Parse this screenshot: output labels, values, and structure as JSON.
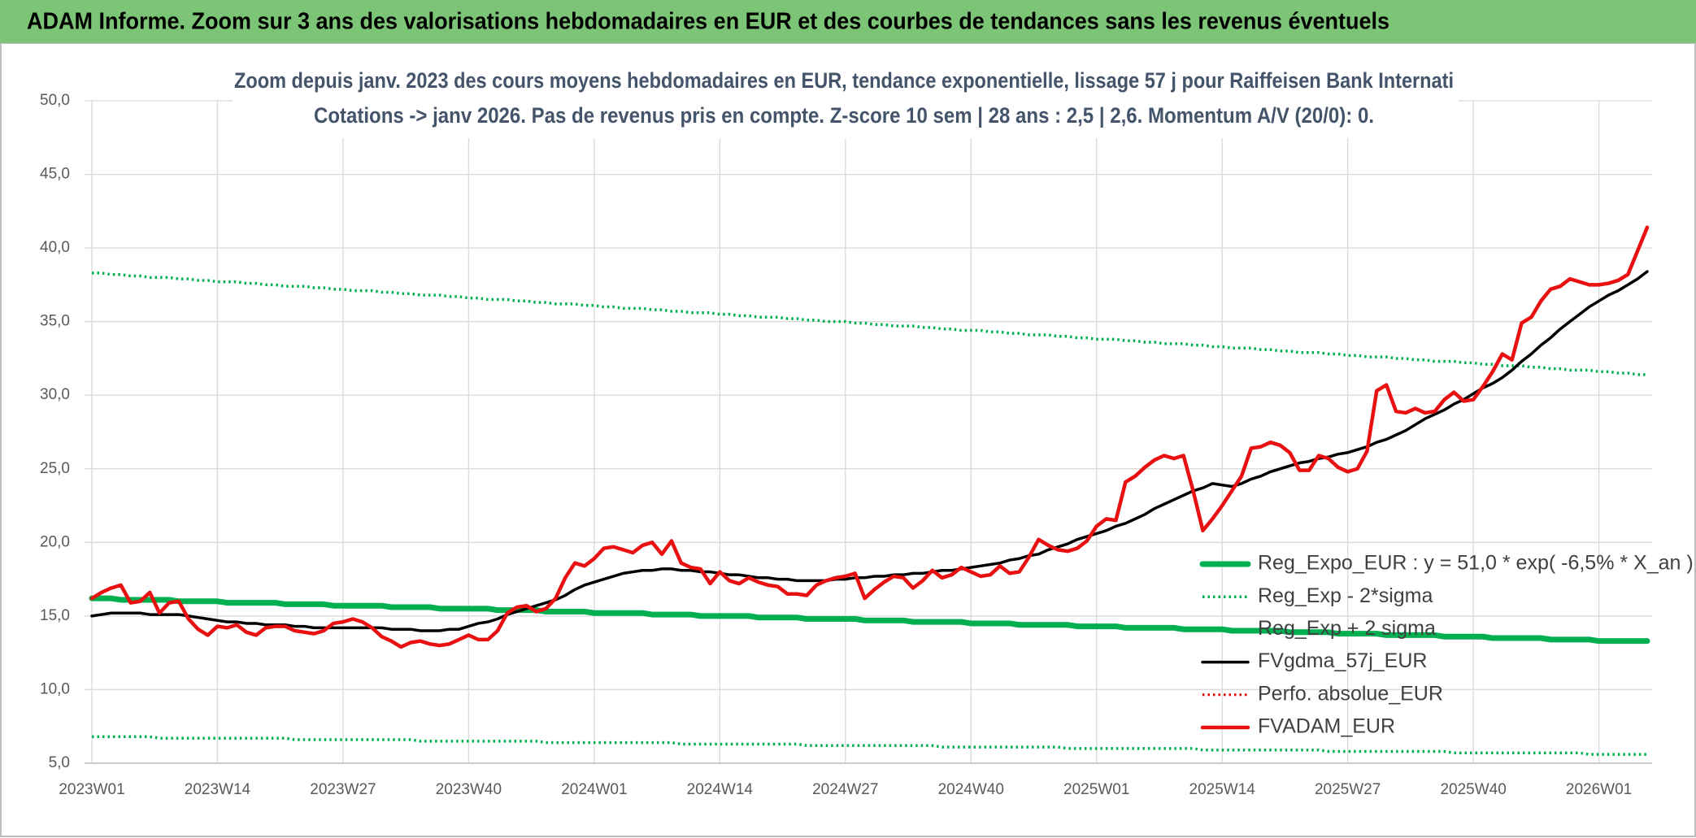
{
  "chart_data": {
    "type": "line",
    "title": "ADAM Informe. Zoom sur 3 ans des valorisations hebdomadaires en EUR et des courbes de tendances sans les revenus éventuels",
    "subtitle": [
      "Zoom depuis janv. 2023 des cours moyens hebdomadaires en EUR, tendance exponentielle, lissage 57 j pour Raiffeisen Bank Internati",
      "Cotations -> janv 2026. Pas de revenus pris en compte. Z-score 10 sem | 28 ans : 2,5 | 2,6. Momentum A/V (20/0): 0."
    ],
    "categories": [
      "2023W01",
      null,
      null,
      null,
      null,
      null,
      null,
      null,
      null,
      null,
      null,
      null,
      null,
      "2023W14",
      null,
      null,
      null,
      null,
      null,
      null,
      null,
      null,
      null,
      null,
      null,
      null,
      "2023W27",
      null,
      null,
      null,
      null,
      null,
      null,
      null,
      null,
      null,
      null,
      null,
      null,
      "2023W40",
      null,
      null,
      null,
      null,
      null,
      null,
      null,
      null,
      null,
      null,
      null,
      null,
      "2024W01",
      null,
      null,
      null,
      null,
      null,
      null,
      null,
      null,
      null,
      null,
      null,
      null,
      "2024W14",
      null,
      null,
      null,
      null,
      null,
      null,
      null,
      null,
      null,
      null,
      null,
      null,
      "2024W27",
      null,
      null,
      null,
      null,
      null,
      null,
      null,
      null,
      null,
      null,
      null,
      null,
      "2024W40",
      null,
      null,
      null,
      null,
      null,
      null,
      null,
      null,
      null,
      null,
      null,
      null,
      "2025W01",
      null,
      null,
      null,
      null,
      null,
      null,
      null,
      null,
      null,
      null,
      null,
      null,
      "2025W14",
      null,
      null,
      null,
      null,
      null,
      null,
      null,
      null,
      null,
      null,
      null,
      null,
      "2025W27",
      null,
      null,
      null,
      null,
      null,
      null,
      null,
      null,
      null,
      null,
      null,
      null,
      "2025W40",
      null,
      null,
      null,
      null,
      null,
      null,
      null,
      null,
      null,
      null,
      null,
      null,
      "2026W01",
      null,
      null,
      null,
      null,
      null
    ],
    "ylim": [
      5,
      50
    ],
    "yticks": [
      {
        "value": 5,
        "label": "5,0"
      },
      {
        "value": 10,
        "label": "10,0"
      },
      {
        "value": 15,
        "label": "15,0"
      },
      {
        "value": 20,
        "label": "20,0"
      },
      {
        "value": 25,
        "label": "25,0"
      },
      {
        "value": 30,
        "label": "30,0"
      },
      {
        "value": 35,
        "label": "35,0"
      },
      {
        "value": 40,
        "label": "40,0"
      },
      {
        "value": 45,
        "label": "45,0"
      },
      {
        "value": 50,
        "label": "50,0"
      }
    ],
    "grid": true,
    "legend": "right",
    "series": [
      {
        "name": "Reg_Expo_EUR : y = 51,0 * exp( -6,5% *  X_an )",
        "color": "#00b050",
        "line_style": "solid",
        "values": [
          16.2,
          16.2,
          16.2,
          16.1,
          16.1,
          16.1,
          16.1,
          16.1,
          16.1,
          16.0,
          16.0,
          16.0,
          16.0,
          16.0,
          15.9,
          15.9,
          15.9,
          15.9,
          15.9,
          15.9,
          15.8,
          15.8,
          15.8,
          15.8,
          15.8,
          15.7,
          15.7,
          15.7,
          15.7,
          15.7,
          15.7,
          15.6,
          15.6,
          15.6,
          15.6,
          15.6,
          15.5,
          15.5,
          15.5,
          15.5,
          15.5,
          15.5,
          15.4,
          15.4,
          15.4,
          15.4,
          15.4,
          15.3,
          15.3,
          15.3,
          15.3,
          15.3,
          15.2,
          15.2,
          15.2,
          15.2,
          15.2,
          15.2,
          15.1,
          15.1,
          15.1,
          15.1,
          15.1,
          15.0,
          15.0,
          15.0,
          15.0,
          15.0,
          15.0,
          14.9,
          14.9,
          14.9,
          14.9,
          14.9,
          14.8,
          14.8,
          14.8,
          14.8,
          14.8,
          14.8,
          14.7,
          14.7,
          14.7,
          14.7,
          14.7,
          14.6,
          14.6,
          14.6,
          14.6,
          14.6,
          14.6,
          14.5,
          14.5,
          14.5,
          14.5,
          14.5,
          14.4,
          14.4,
          14.4,
          14.4,
          14.4,
          14.4,
          14.3,
          14.3,
          14.3,
          14.3,
          14.3,
          14.2,
          14.2,
          14.2,
          14.2,
          14.2,
          14.2,
          14.1,
          14.1,
          14.1,
          14.1,
          14.1,
          14.0,
          14.0,
          14.0,
          14.0,
          14.0,
          14.0,
          13.9,
          13.9,
          13.9,
          13.9,
          13.9,
          13.8,
          13.8,
          13.8,
          13.8,
          13.8,
          13.7,
          13.7,
          13.7,
          13.7,
          13.7,
          13.7,
          13.6,
          13.6,
          13.6,
          13.6,
          13.6,
          13.5,
          13.5,
          13.5,
          13.5,
          13.5,
          13.5,
          13.4,
          13.4,
          13.4,
          13.4,
          13.4,
          13.3,
          13.3,
          13.3,
          13.3,
          13.3,
          13.3
        ]
      },
      {
        "name": "Reg_Exp - 2*sigma",
        "color": "#00b050",
        "line_style": "dotted",
        "values": [
          6.8,
          6.8,
          6.8,
          6.8,
          6.8,
          6.8,
          6.8,
          6.7,
          6.7,
          6.7,
          6.7,
          6.7,
          6.7,
          6.7,
          6.7,
          6.7,
          6.7,
          6.7,
          6.7,
          6.7,
          6.7,
          6.6,
          6.6,
          6.6,
          6.6,
          6.6,
          6.6,
          6.6,
          6.6,
          6.6,
          6.6,
          6.6,
          6.6,
          6.6,
          6.5,
          6.5,
          6.5,
          6.5,
          6.5,
          6.5,
          6.5,
          6.5,
          6.5,
          6.5,
          6.5,
          6.5,
          6.5,
          6.4,
          6.4,
          6.4,
          6.4,
          6.4,
          6.4,
          6.4,
          6.4,
          6.4,
          6.4,
          6.4,
          6.4,
          6.4,
          6.4,
          6.3,
          6.3,
          6.3,
          6.3,
          6.3,
          6.3,
          6.3,
          6.3,
          6.3,
          6.3,
          6.3,
          6.3,
          6.3,
          6.2,
          6.2,
          6.2,
          6.2,
          6.2,
          6.2,
          6.2,
          6.2,
          6.2,
          6.2,
          6.2,
          6.2,
          6.2,
          6.2,
          6.1,
          6.1,
          6.1,
          6.1,
          6.1,
          6.1,
          6.1,
          6.1,
          6.1,
          6.1,
          6.1,
          6.1,
          6.1,
          6.0,
          6.0,
          6.0,
          6.0,
          6.0,
          6.0,
          6.0,
          6.0,
          6.0,
          6.0,
          6.0,
          6.0,
          6.0,
          6.0,
          5.9,
          5.9,
          5.9,
          5.9,
          5.9,
          5.9,
          5.9,
          5.9,
          5.9,
          5.9,
          5.9,
          5.9,
          5.9,
          5.8,
          5.8,
          5.8,
          5.8,
          5.8,
          5.8,
          5.8,
          5.8,
          5.8,
          5.8,
          5.8,
          5.8,
          5.8,
          5.7,
          5.7,
          5.7,
          5.7,
          5.7,
          5.7,
          5.7,
          5.7,
          5.7,
          5.7,
          5.7,
          5.7,
          5.7,
          5.7,
          5.6,
          5.6,
          5.6,
          5.6,
          5.6,
          5.6,
          5.6
        ]
      },
      {
        "name": "Reg_Exp + 2 sigma",
        "color": "#00b050",
        "line_style": "dotted",
        "values": [
          38.3,
          38.3,
          38.2,
          38.2,
          38.1,
          38.1,
          38.0,
          38.0,
          38.0,
          37.9,
          37.9,
          37.8,
          37.8,
          37.7,
          37.7,
          37.7,
          37.6,
          37.6,
          37.5,
          37.5,
          37.4,
          37.4,
          37.4,
          37.3,
          37.3,
          37.2,
          37.2,
          37.1,
          37.1,
          37.1,
          37.0,
          37.0,
          36.9,
          36.9,
          36.8,
          36.8,
          36.8,
          36.7,
          36.7,
          36.6,
          36.6,
          36.5,
          36.5,
          36.5,
          36.4,
          36.4,
          36.3,
          36.3,
          36.2,
          36.2,
          36.2,
          36.1,
          36.1,
          36.0,
          36.0,
          35.9,
          35.9,
          35.9,
          35.8,
          35.8,
          35.7,
          35.7,
          35.6,
          35.6,
          35.6,
          35.5,
          35.5,
          35.4,
          35.4,
          35.3,
          35.3,
          35.3,
          35.2,
          35.2,
          35.1,
          35.1,
          35.0,
          35.0,
          35.0,
          34.9,
          34.9,
          34.8,
          34.8,
          34.7,
          34.7,
          34.7,
          34.6,
          34.6,
          34.5,
          34.5,
          34.4,
          34.4,
          34.4,
          34.3,
          34.3,
          34.2,
          34.2,
          34.1,
          34.1,
          34.1,
          34.0,
          34.0,
          33.9,
          33.9,
          33.8,
          33.8,
          33.8,
          33.7,
          33.7,
          33.6,
          33.6,
          33.5,
          33.5,
          33.5,
          33.4,
          33.4,
          33.3,
          33.3,
          33.2,
          33.2,
          33.2,
          33.1,
          33.1,
          33.0,
          33.0,
          32.9,
          32.9,
          32.9,
          32.8,
          32.8,
          32.7,
          32.7,
          32.6,
          32.6,
          32.6,
          32.5,
          32.5,
          32.4,
          32.4,
          32.3,
          32.3,
          32.3,
          32.2,
          32.2,
          32.1,
          32.1,
          32.0,
          32.0,
          32.0,
          31.9,
          31.9,
          31.8,
          31.8,
          31.7,
          31.7,
          31.7,
          31.6,
          31.6,
          31.5,
          31.5,
          31.4,
          31.4
        ]
      },
      {
        "name": "FVgdma_57j_EUR",
        "color": "#000000",
        "line_style": "solid",
        "values": [
          15.0,
          15.1,
          15.2,
          15.2,
          15.2,
          15.2,
          15.1,
          15.1,
          15.1,
          15.1,
          15.0,
          14.9,
          14.8,
          14.7,
          14.6,
          14.6,
          14.5,
          14.5,
          14.4,
          14.4,
          14.4,
          14.3,
          14.3,
          14.2,
          14.2,
          14.2,
          14.2,
          14.2,
          14.2,
          14.2,
          14.2,
          14.1,
          14.1,
          14.1,
          14.0,
          14.0,
          14.0,
          14.1,
          14.1,
          14.3,
          14.5,
          14.6,
          14.8,
          15.1,
          15.3,
          15.5,
          15.7,
          15.9,
          16.1,
          16.4,
          16.8,
          17.1,
          17.3,
          17.5,
          17.7,
          17.9,
          18.0,
          18.1,
          18.1,
          18.2,
          18.2,
          18.1,
          18.1,
          18.0,
          18.0,
          17.9,
          17.8,
          17.8,
          17.7,
          17.6,
          17.6,
          17.5,
          17.5,
          17.4,
          17.4,
          17.4,
          17.4,
          17.5,
          17.5,
          17.6,
          17.6,
          17.7,
          17.7,
          17.8,
          17.8,
          17.9,
          17.9,
          18.0,
          18.1,
          18.1,
          18.2,
          18.3,
          18.4,
          18.5,
          18.6,
          18.8,
          18.9,
          19.1,
          19.2,
          19.5,
          19.7,
          19.9,
          20.2,
          20.4,
          20.6,
          20.8,
          21.1,
          21.3,
          21.6,
          21.9,
          22.3,
          22.6,
          22.9,
          23.2,
          23.5,
          23.7,
          24.0,
          23.9,
          23.8,
          24.0,
          24.3,
          24.5,
          24.8,
          25.0,
          25.2,
          25.4,
          25.5,
          25.7,
          25.8,
          26.0,
          26.1,
          26.3,
          26.5,
          26.8,
          27.0,
          27.3,
          27.6,
          28.0,
          28.4,
          28.7,
          29.0,
          29.4,
          29.7,
          30.1,
          30.5,
          30.8,
          31.2,
          31.7,
          32.3,
          32.8,
          33.4,
          33.9,
          34.5,
          35.0,
          35.5,
          36.0,
          36.4,
          36.8,
          37.1,
          37.5,
          37.9,
          38.4
        ]
      },
      {
        "name": "Perfo. absolue_EUR",
        "color": "#e00000",
        "line_style": "dotted",
        "values": [
          null,
          null,
          null,
          null,
          null,
          null,
          null,
          null,
          null,
          null,
          null,
          null,
          null,
          null,
          null,
          null,
          null,
          null,
          null,
          null,
          null,
          null,
          null,
          null,
          null,
          null,
          null,
          null,
          null,
          null,
          null,
          null,
          null,
          null,
          null,
          null,
          null,
          null,
          null,
          null,
          null,
          null,
          null,
          null,
          null,
          null,
          null,
          null,
          null,
          null,
          null,
          null,
          null,
          null,
          null,
          null,
          null,
          null,
          null,
          null,
          null,
          null,
          null,
          null,
          null,
          null,
          null,
          null,
          null,
          null,
          null,
          null,
          null,
          null,
          null,
          null,
          null,
          null,
          null,
          null,
          null,
          null,
          null,
          null,
          null,
          null,
          null,
          null,
          null,
          null,
          null,
          null,
          null,
          null,
          null,
          null,
          null,
          null,
          null,
          null,
          null,
          null,
          null,
          null,
          null,
          null,
          null,
          null,
          null,
          null,
          null,
          null,
          null,
          null,
          null,
          null,
          null,
          null,
          null,
          null,
          null,
          null,
          null,
          null,
          null,
          null,
          null,
          null,
          null,
          null,
          null,
          null,
          null,
          null,
          null,
          null,
          null,
          null,
          null,
          null,
          null,
          null,
          null,
          null,
          null,
          null,
          null,
          null,
          null,
          null,
          null,
          null,
          null,
          null,
          null,
          null,
          null,
          null,
          null,
          null,
          null,
          null
        ]
      },
      {
        "name": "FVADAM_EUR",
        "color": "#e81010",
        "line_style": "solid",
        "values": [
          16.2,
          16.6,
          16.9,
          17.1,
          15.9,
          16.0,
          16.6,
          15.2,
          15.9,
          16.0,
          14.8,
          14.1,
          13.7,
          14.3,
          14.2,
          14.4,
          13.9,
          13.7,
          14.2,
          14.3,
          14.3,
          14.0,
          13.9,
          13.8,
          14.0,
          14.5,
          14.6,
          14.8,
          14.6,
          14.2,
          13.6,
          13.3,
          12.9,
          13.2,
          13.3,
          13.1,
          13.0,
          13.1,
          13.4,
          13.7,
          13.4,
          13.4,
          14.0,
          15.2,
          15.6,
          15.7,
          15.3,
          15.5,
          16.2,
          17.6,
          18.6,
          18.4,
          18.9,
          19.6,
          19.7,
          19.5,
          19.3,
          19.8,
          20.0,
          19.2,
          20.1,
          18.6,
          18.3,
          18.2,
          17.2,
          18.0,
          17.4,
          17.2,
          17.6,
          17.3,
          17.1,
          17.0,
          16.5,
          16.5,
          16.4,
          17.1,
          17.4,
          17.6,
          17.7,
          17.9,
          16.2,
          16.8,
          17.3,
          17.7,
          17.6,
          16.9,
          17.4,
          18.1,
          17.6,
          17.8,
          18.3,
          18.0,
          17.7,
          17.8,
          18.4,
          17.9,
          18.0,
          19.0,
          20.2,
          19.8,
          19.5,
          19.4,
          19.6,
          20.1,
          21.1,
          21.6,
          21.5,
          24.1,
          24.5,
          25.1,
          25.6,
          25.9,
          25.7,
          25.9,
          23.5,
          20.8,
          21.6,
          22.5,
          23.5,
          24.5,
          26.4,
          26.5,
          26.8,
          26.6,
          26.1,
          24.9,
          24.9,
          25.9,
          25.7,
          25.1,
          24.8,
          25.0,
          26.2,
          30.3,
          30.7,
          28.9,
          28.8,
          29.1,
          28.8,
          28.9,
          29.7,
          30.2,
          29.6,
          29.7,
          30.6,
          31.6,
          32.8,
          32.4,
          34.9,
          35.3,
          36.4,
          37.2,
          37.4,
          37.9,
          37.7,
          37.5,
          37.5,
          37.6,
          37.8,
          38.2,
          39.8,
          41.4
        ]
      }
    ]
  }
}
